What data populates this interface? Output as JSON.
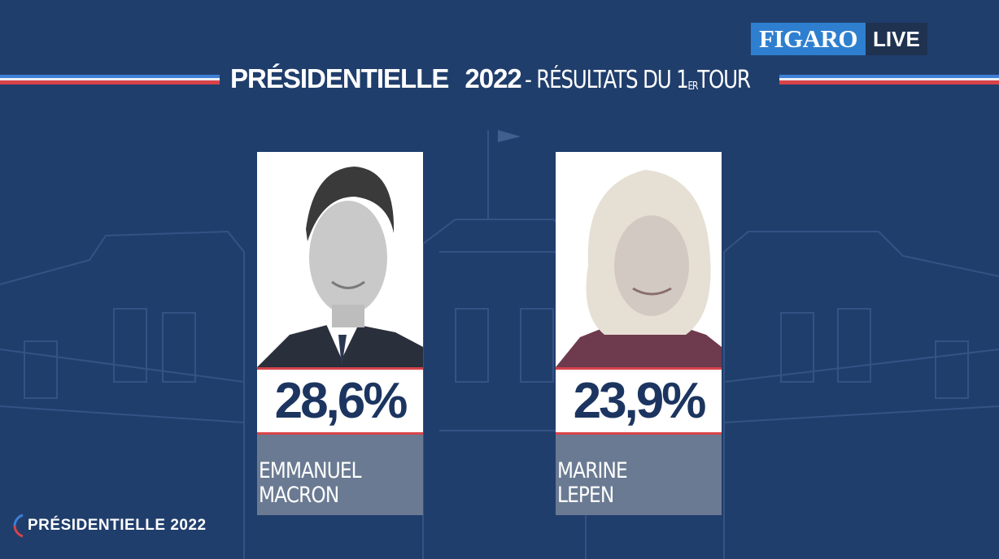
{
  "header": {
    "title_bold": "PRÉSIDENTIELLE",
    "title_year": "2022",
    "title_rest": "- RÉSULTATS DU 1",
    "title_sup": "ER",
    "title_end": "TOUR"
  },
  "logo": {
    "brand": "FIGARO",
    "live": "LIVE"
  },
  "candidates": [
    {
      "score": "28,6%",
      "name": "EMMANUEL\nMACRON",
      "color": "#f39a1f"
    },
    {
      "score": "23,9%",
      "name": "MARINE\nLEPEN",
      "color": "#a7279f"
    }
  ],
  "badge": {
    "text": "PRÉSIDENTIELLE 2022"
  },
  "colors": {
    "background": "#203e6c",
    "score_text": "#1c3560",
    "name_box": "#6a7a92",
    "stripe_blue": "#3d7fd6",
    "stripe_red": "#d8434a"
  }
}
